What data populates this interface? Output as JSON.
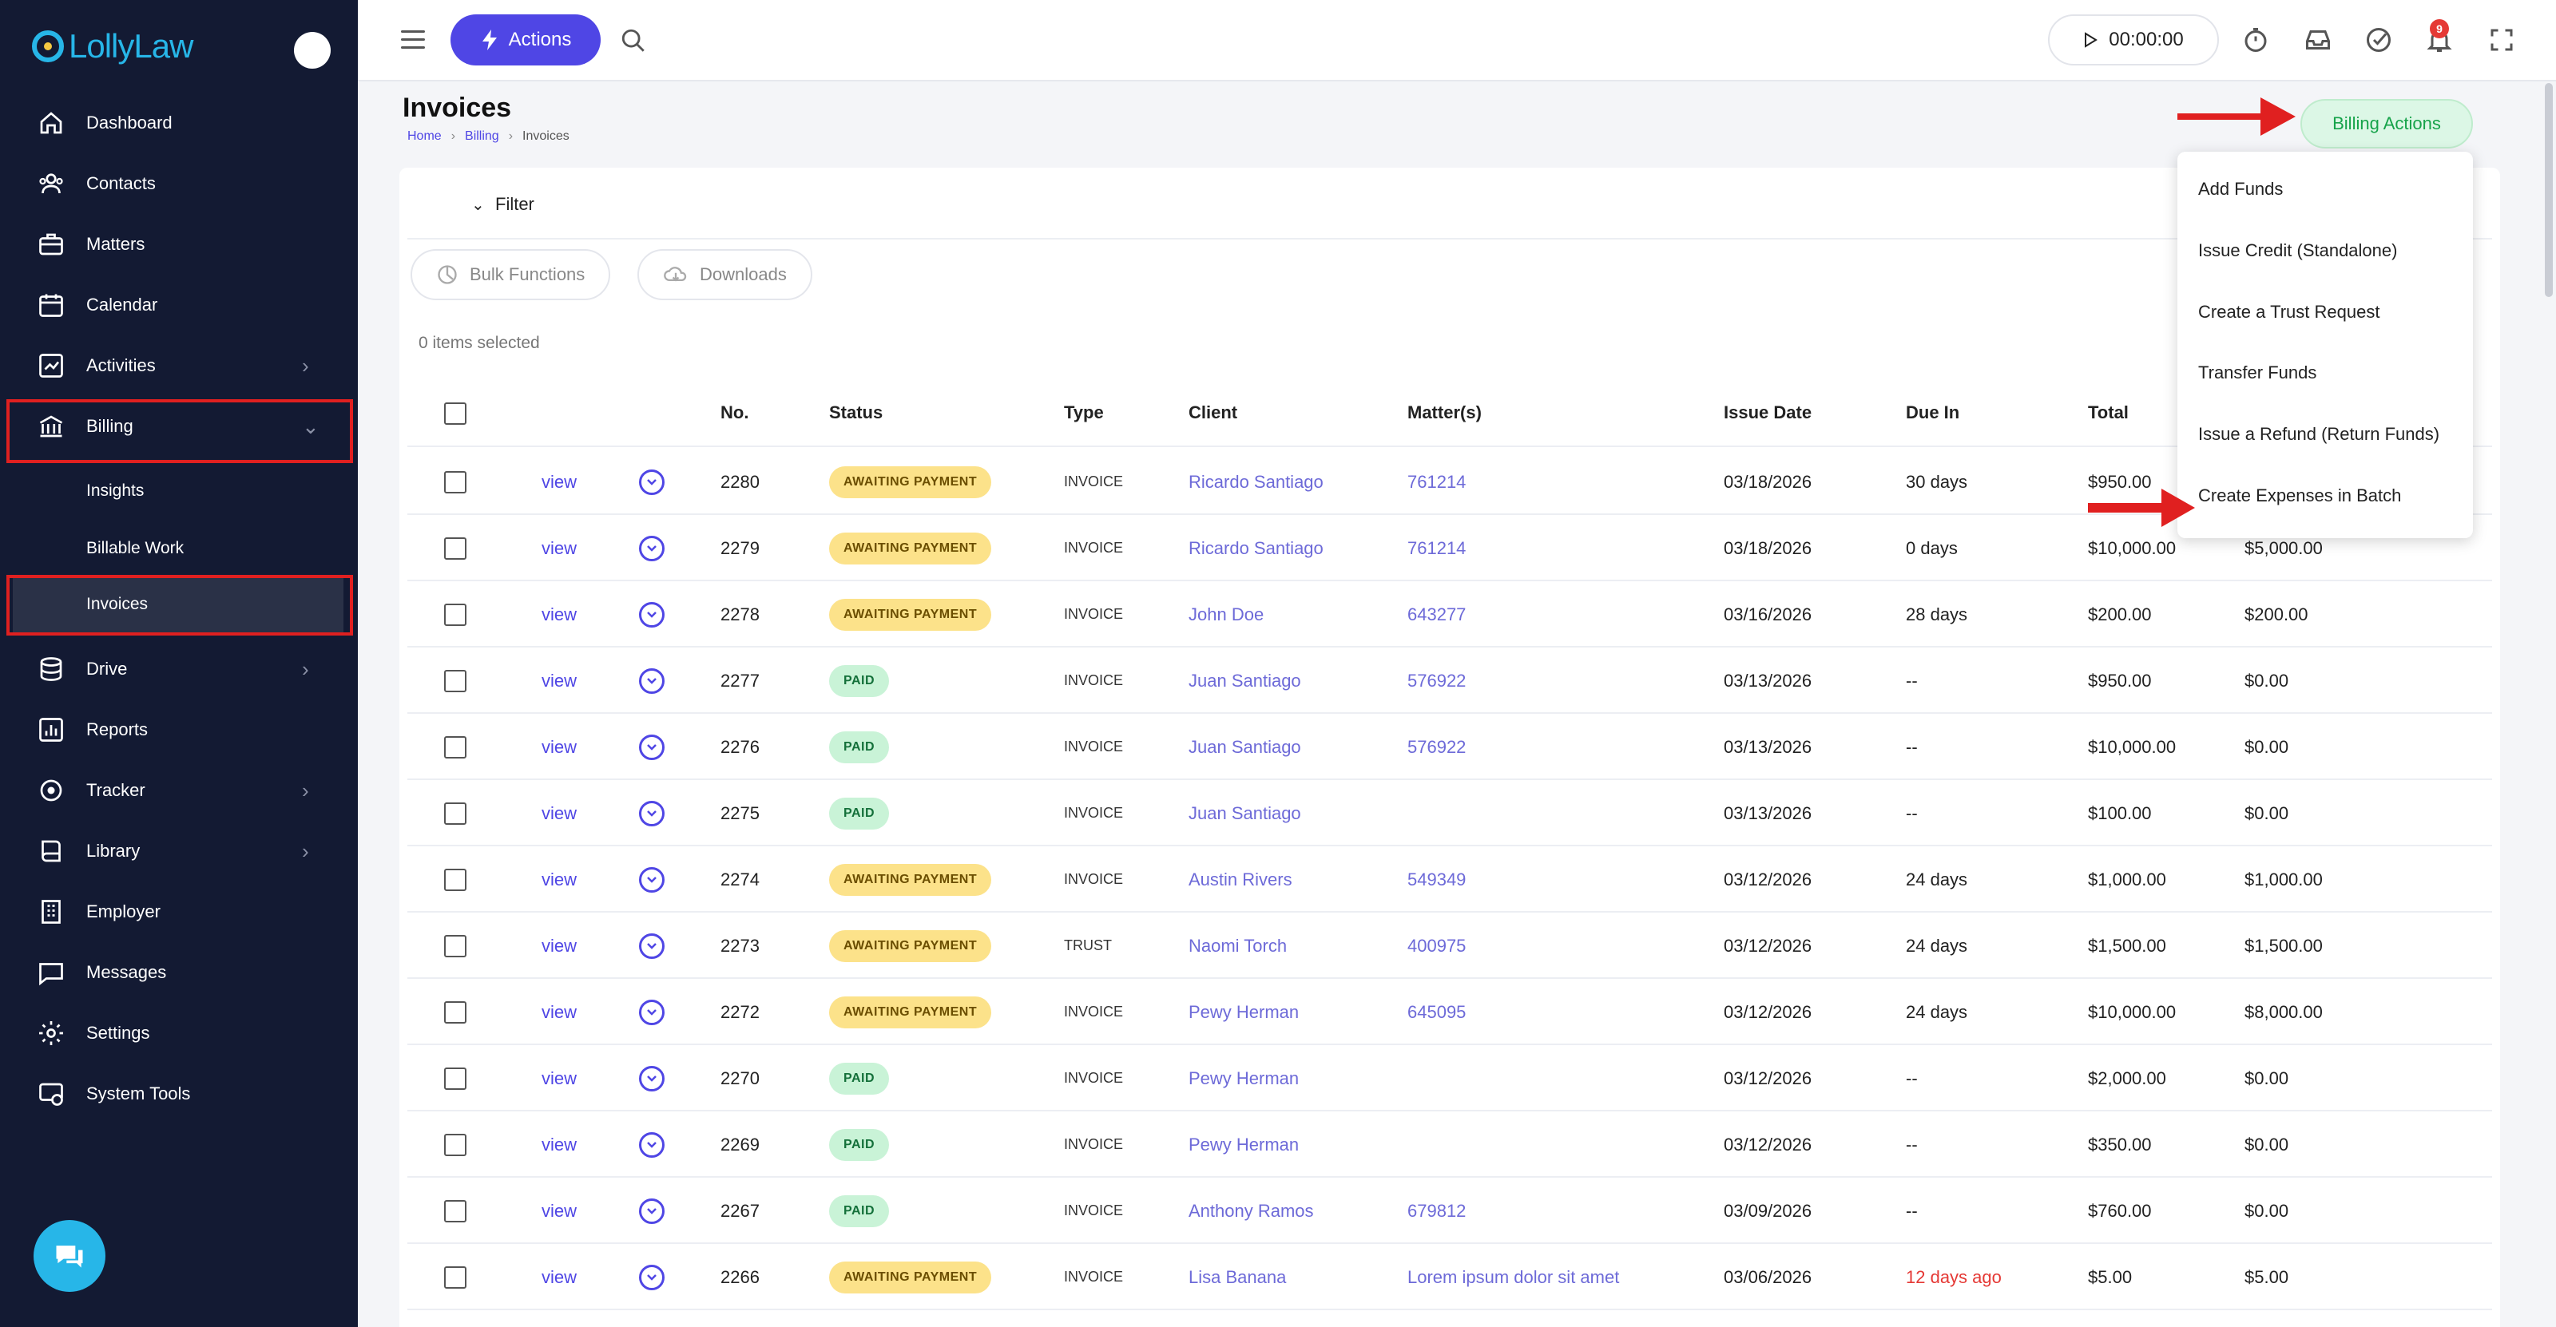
{
  "app": {
    "logo": "LollyLaw"
  },
  "sidebar": {
    "items": [
      {
        "label": "Dashboard",
        "icon": "home-icon"
      },
      {
        "label": "Contacts",
        "icon": "contacts-icon"
      },
      {
        "label": "Matters",
        "icon": "briefcase-icon"
      },
      {
        "label": "Calendar",
        "icon": "calendar-icon"
      },
      {
        "label": "Activities",
        "icon": "chart-icon"
      },
      {
        "label": "Billing",
        "icon": "bank-icon"
      },
      {
        "label": "Drive",
        "icon": "database-icon"
      },
      {
        "label": "Reports",
        "icon": "reports-icon"
      },
      {
        "label": "Tracker",
        "icon": "target-icon"
      },
      {
        "label": "Library",
        "icon": "book-icon"
      },
      {
        "label": "Employer",
        "icon": "building-icon"
      },
      {
        "label": "Messages",
        "icon": "message-icon"
      },
      {
        "label": "Settings",
        "icon": "gear-icon"
      },
      {
        "label": "System Tools",
        "icon": "system-tools-icon"
      }
    ],
    "billing_sub": [
      {
        "label": "Insights"
      },
      {
        "label": "Billable Work"
      },
      {
        "label": "Invoices"
      }
    ]
  },
  "topbar": {
    "actions_label": "Actions",
    "timer": "00:00:00",
    "notification_count": "9"
  },
  "page": {
    "title": "Invoices",
    "breadcrumb": [
      "Home",
      "Billing",
      "Invoices"
    ],
    "billing_actions_label": "Billing Actions",
    "filter_label": "Filter",
    "bulk_functions_label": "Bulk Functions",
    "downloads_label": "Downloads",
    "items_selected": "0 items selected"
  },
  "table": {
    "headers": {
      "no": "No.",
      "status": "Status",
      "type": "Type",
      "client": "Client",
      "matters": "Matter(s)",
      "issue_date": "Issue Date",
      "due_in": "Due In",
      "total": "Total"
    },
    "view_label": "view",
    "rows": [
      {
        "no": "2280",
        "status": "AWAITING PAYMENT",
        "type": "INVOICE",
        "client": "Ricardo Santiago",
        "matter": "761214",
        "issue_date": "03/18/2026",
        "due_in": "30 days",
        "total": "$950.00",
        "balance": ""
      },
      {
        "no": "2279",
        "status": "AWAITING PAYMENT",
        "type": "INVOICE",
        "client": "Ricardo Santiago",
        "matter": "761214",
        "issue_date": "03/18/2026",
        "due_in": "0 days",
        "total": "$10,000.00",
        "balance": "$5,000.00"
      },
      {
        "no": "2278",
        "status": "AWAITING PAYMENT",
        "type": "INVOICE",
        "client": "John Doe",
        "matter": "643277",
        "issue_date": "03/16/2026",
        "due_in": "28 days",
        "total": "$200.00",
        "balance": "$200.00"
      },
      {
        "no": "2277",
        "status": "PAID",
        "type": "INVOICE",
        "client": "Juan Santiago",
        "matter": "576922",
        "issue_date": "03/13/2026",
        "due_in": "--",
        "total": "$950.00",
        "balance": "$0.00"
      },
      {
        "no": "2276",
        "status": "PAID",
        "type": "INVOICE",
        "client": "Juan Santiago",
        "matter": "576922",
        "issue_date": "03/13/2026",
        "due_in": "--",
        "total": "$10,000.00",
        "balance": "$0.00"
      },
      {
        "no": "2275",
        "status": "PAID",
        "type": "INVOICE",
        "client": "Juan Santiago",
        "matter": "",
        "issue_date": "03/13/2026",
        "due_in": "--",
        "total": "$100.00",
        "balance": "$0.00"
      },
      {
        "no": "2274",
        "status": "AWAITING PAYMENT",
        "type": "INVOICE",
        "client": "Austin Rivers",
        "matter": "549349",
        "issue_date": "03/12/2026",
        "due_in": "24 days",
        "total": "$1,000.00",
        "balance": "$1,000.00"
      },
      {
        "no": "2273",
        "status": "AWAITING PAYMENT",
        "type": "TRUST",
        "client": "Naomi Torch",
        "matter": "400975",
        "issue_date": "03/12/2026",
        "due_in": "24 days",
        "total": "$1,500.00",
        "balance": "$1,500.00"
      },
      {
        "no": "2272",
        "status": "AWAITING PAYMENT",
        "type": "INVOICE",
        "client": "Pewy Herman",
        "matter": "645095",
        "issue_date": "03/12/2026",
        "due_in": "24 days",
        "total": "$10,000.00",
        "balance": "$8,000.00"
      },
      {
        "no": "2270",
        "status": "PAID",
        "type": "INVOICE",
        "client": "Pewy Herman",
        "matter": "",
        "issue_date": "03/12/2026",
        "due_in": "--",
        "total": "$2,000.00",
        "balance": "$0.00"
      },
      {
        "no": "2269",
        "status": "PAID",
        "type": "INVOICE",
        "client": "Pewy Herman",
        "matter": "",
        "issue_date": "03/12/2026",
        "due_in": "--",
        "total": "$350.00",
        "balance": "$0.00"
      },
      {
        "no": "2267",
        "status": "PAID",
        "type": "INVOICE",
        "client": "Anthony Ramos",
        "matter": "679812",
        "issue_date": "03/09/2026",
        "due_in": "--",
        "total": "$760.00",
        "balance": "$0.00"
      },
      {
        "no": "2266",
        "status": "AWAITING PAYMENT",
        "type": "INVOICE",
        "client": "Lisa Banana",
        "matter": "Lorem ipsum dolor sit amet",
        "issue_date": "03/06/2026",
        "due_in": "12 days ago",
        "total": "$5.00",
        "balance": "$5.00"
      }
    ]
  },
  "billing_menu": {
    "items": [
      "Add Funds",
      "Issue Credit (Standalone)",
      "Create a Trust Request",
      "Transfer Funds",
      "Issue a Refund (Return Funds)",
      "Create Expenses in Batch"
    ]
  },
  "colors": {
    "sidebar": "#131a33",
    "accent": "#4f46e5",
    "paid": "#c9f3d7",
    "awaiting": "#fce28a",
    "annotation": "#e02020"
  }
}
